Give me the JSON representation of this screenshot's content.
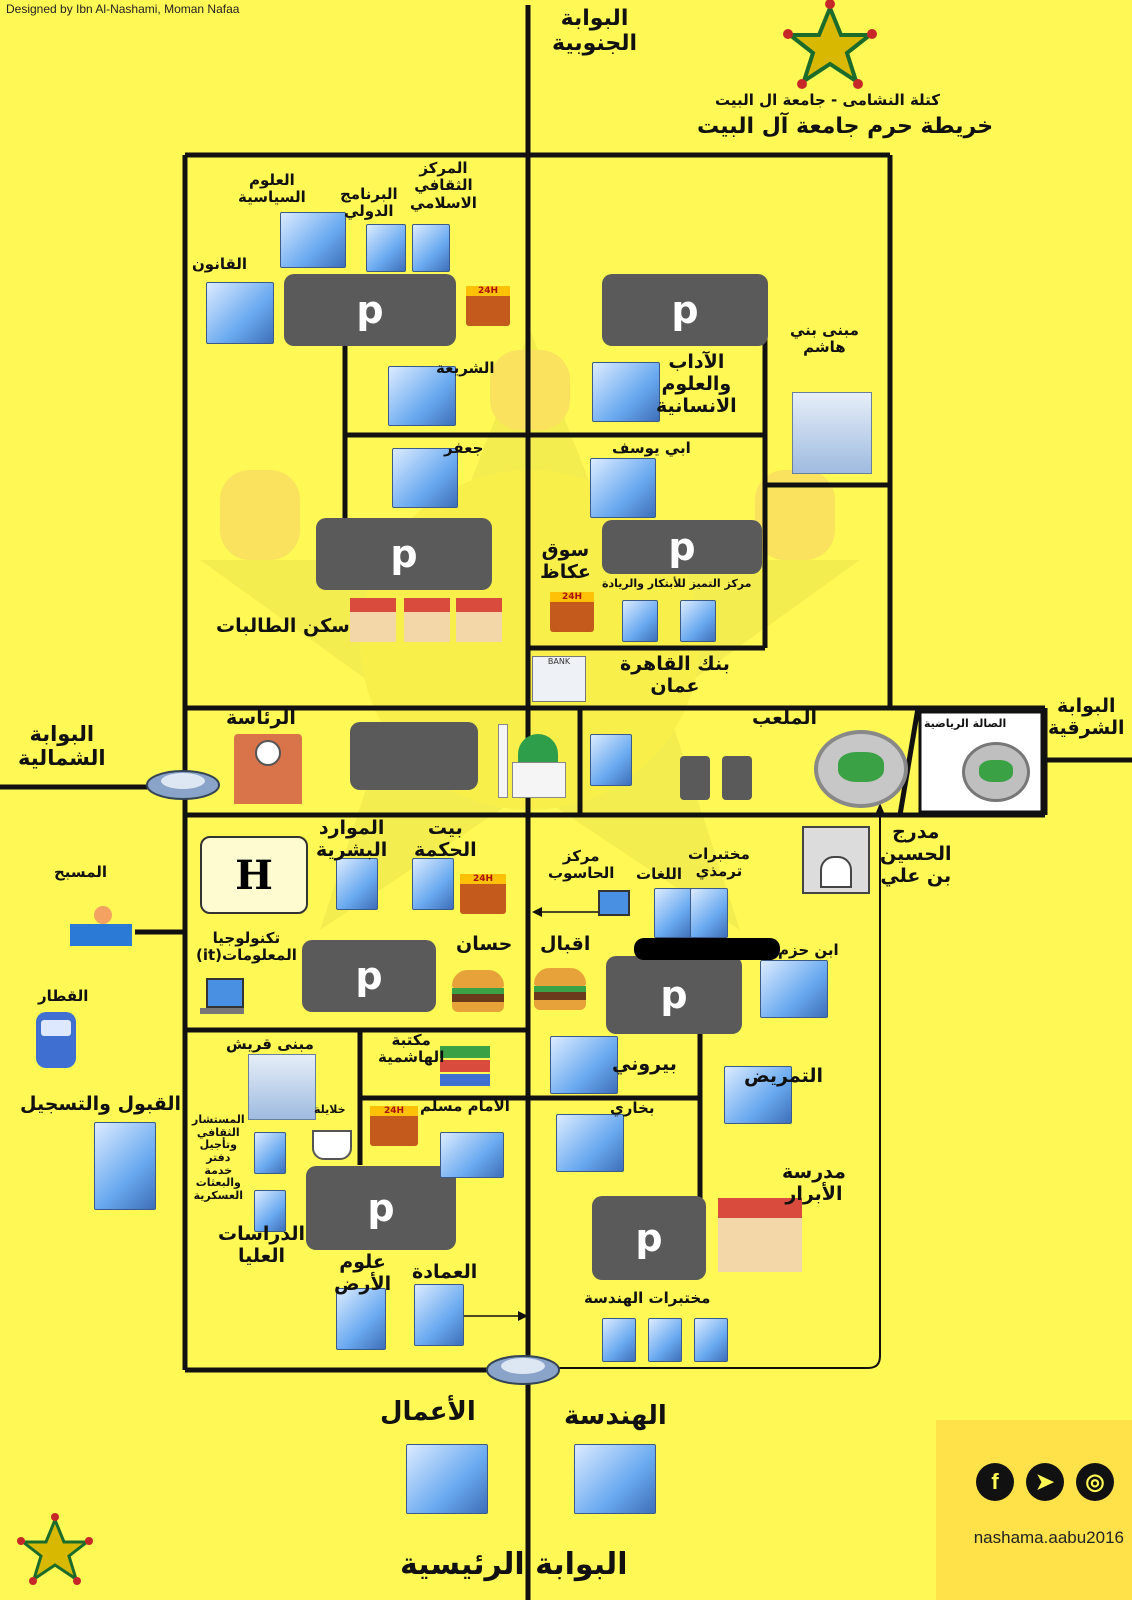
{
  "credit": "Designed by Ibn Al-Nashami, Moman Nafaa",
  "header": {
    "subtitle": "كتلة النشامى - جامعة ال البيت",
    "title": "خريطة حرم جامعة آل البيت"
  },
  "gates": {
    "south": "البوابة\nالجنوبية",
    "north": "البوابة\nالشمالية",
    "east": "البوابة\nالشرقية",
    "main": "البوابة الرئيسية"
  },
  "parking_label": "p",
  "labels": {
    "political_science": "العلوم\nالسياسية",
    "intl_program": "البرنامج\nالدولي",
    "islamic_center": "المركز\nالثقافي\nالاسلامي",
    "law": "القانون",
    "sharia": "الشريعة",
    "arts": "الآداب\nوالعلوم\nالانسانية",
    "bani_hashem": "مبنى بني\nهاشم",
    "jafar": "جعفر",
    "abu_yousef": "ابي يوسف",
    "souq_okaz": "سوق\nعكاظ",
    "excellence_center": "مركز التميز للأبتكار والريادة",
    "female_housing": "سكن الطالبات",
    "cairo_bank": "بنك القاهرة\nعمان",
    "presidency": "الرئاسة",
    "stadium": "الملعب",
    "sports_hall": "الصالة الرياضية",
    "hussein_amph": "مدرج\nالحسين\nبن علي",
    "pool": "المسبح",
    "hr": "الموارد\nالبشرية",
    "bait_hikma": "بيت\nالحكمة",
    "computer_center": "مركز\nالحاسوب",
    "languages": "اللغات",
    "tirmidhi_labs": "مختبرات\nترمذي",
    "it": "تكنولوجيا\nالمعلومات(it)",
    "hassan": "حسان",
    "iqbal": "اقبال",
    "ibn_hazm": "ابن حزم",
    "train": "القطار",
    "quraysh": "مبنى قريش",
    "hashemite_library": "مكتبة\nالهاشمية",
    "biruni": "بيروني",
    "nursing": "التمريض",
    "admission": "القبول والتسجيل",
    "cultural_counselor": "المستشار\nالثقافي\nوتأجيل\nدفتر\nخدمة\nوالبعثات\nالعسكرية",
    "khalayleh": "خلايلة",
    "imam_muslim": "الامام مسلم",
    "bukhari": "بخاري",
    "abrar_school": "مدرسة\nالأبرار",
    "grad_studies": "الدراسات\nالعليا",
    "earth_sciences": "علوم\nالأرض",
    "deanship": "العمادة",
    "eng_labs": "مختبرات الهندسة",
    "business": "الأعمال",
    "engineering": "الهندسة"
  },
  "icons": {
    "h_sign": "H",
    "hours_badge": "24H",
    "bank_sign": "BANK"
  },
  "social": {
    "handle": "nashama.aabu2016",
    "facebook": "f",
    "telegram": "➤",
    "instagram": "◎"
  },
  "colors": {
    "background": "#fff855",
    "road": "#111111",
    "parking": "#5a5a5a",
    "building": "#6aaaf0"
  }
}
